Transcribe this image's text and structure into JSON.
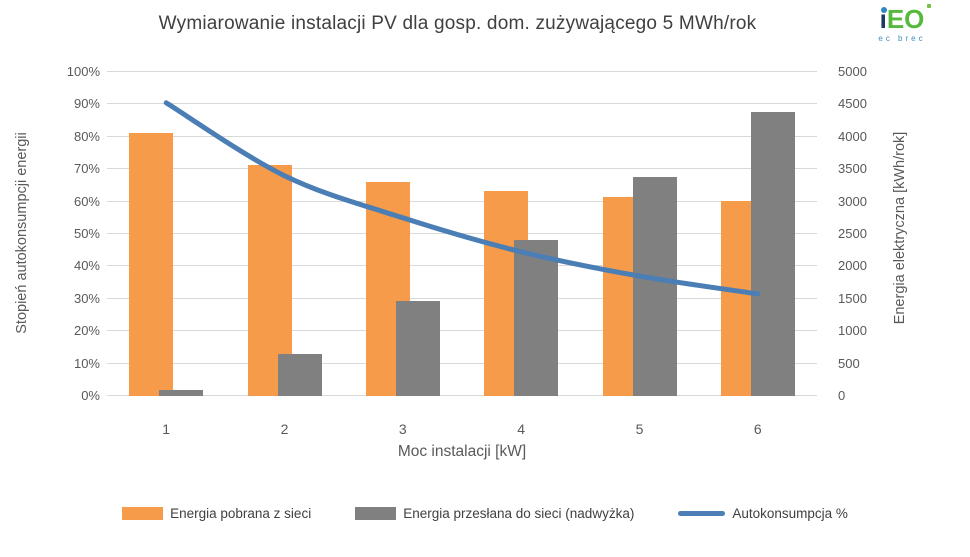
{
  "header": {
    "title": "Wymiarowanie instalacji PV dla gosp. dom. zużywającego 5 MWh/rok",
    "logo": {
      "i": "i",
      "eo": "EO",
      "tagline": "ec brec"
    }
  },
  "chart_data": {
    "type": "bar+line",
    "title": "Wymiarowanie instalacji PV dla gosp. dom. zużywającego 5 MWh/rok",
    "xlabel": "Moc instalacji [kW]",
    "ylabel_left": "Stopień autokonsumpcji energii",
    "ylabel_right": "Energia elektryczna [kWh/rok]",
    "categories": [
      "1",
      "2",
      "3",
      "4",
      "5",
      "6"
    ],
    "series": [
      {
        "name": "Energia pobrana z sieci",
        "type": "bar",
        "axis": "right",
        "color": "#f59b49",
        "values": [
          4060,
          3560,
          3300,
          3160,
          3070,
          3010
        ]
      },
      {
        "name": "Energia przesłana do sieci (nadwyżka)",
        "type": "bar",
        "axis": "right",
        "color": "#808080",
        "values": [
          100,
          650,
          1470,
          2400,
          3380,
          4380
        ]
      },
      {
        "name": "Autokonsumpcja %",
        "type": "line",
        "axis": "left",
        "color": "#4a7eb5",
        "values": [
          90.5,
          68,
          55,
          44.5,
          37,
          31.5
        ]
      }
    ],
    "ylim_left": [
      0,
      100
    ],
    "ylim_right": [
      0,
      5000
    ],
    "left_ticks": [
      "0%",
      "10%",
      "20%",
      "30%",
      "40%",
      "50%",
      "60%",
      "70%",
      "80%",
      "90%",
      "100%"
    ],
    "right_ticks": [
      "0",
      "500",
      "1000",
      "1500",
      "2000",
      "2500",
      "3000",
      "3500",
      "4000",
      "4500",
      "5000"
    ],
    "grid": true,
    "legend_position": "bottom"
  },
  "style": {
    "grid_color": "#d9d9d9",
    "tick_color": "#595959",
    "title_color": "#404040"
  }
}
